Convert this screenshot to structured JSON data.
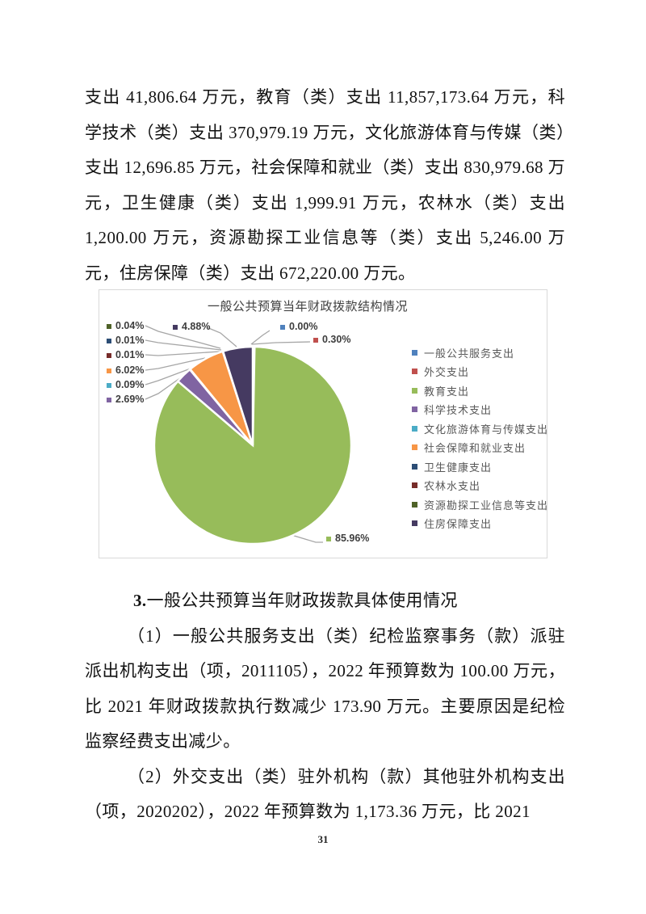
{
  "document": {
    "paragraph_continuation": "支出 41,806.64 万元，教育（类）支出 11,857,173.64 万元，科学技术（类）支出 370,979.19 万元，文化旅游体育与传媒（类）支出 12,696.85 万元，社会保障和就业（类）支出 830,979.68 万元，卫生健康（类）支出 1,999.91 万元，农林水（类）支出 1,200.00 万元，资源勘探工业信息等（类）支出 5,246.00 万元，住房保障（类）支出 672,220.00 万元。",
    "section_heading_number": "3.",
    "section_heading_text": "一般公共预算当年财政拨款具体使用情况",
    "paragraph_item1": "（1）一般公共服务支出（类）纪检监察事务（款）派驻派出机构支出（项，2011105），2022 年预算数为 100.00 万元，比 2021 年财政拨款执行数减少 173.90 万元。主要原因是纪检监察经费支出减少。",
    "paragraph_item2": "（2）外交支出（类）驻外机构（款）其他驻外机构支出（项，2020202），2022 年预算数为 1,173.36 万元，比 2021",
    "page_number": "31"
  },
  "chart_data": {
    "type": "pie",
    "title": "一般公共预算当年财政拨款结构情况",
    "legend_position": "right",
    "categories": [
      "一般公共服务支出",
      "外交支出",
      "教育支出",
      "科学技术支出",
      "文化旅游体育与传媒支出",
      "社会保障和就业支出",
      "卫生健康支出",
      "农林水支出",
      "资源勘探工业信息等支出",
      "住房保障支出"
    ],
    "values_percent": [
      0.0,
      0.3,
      85.96,
      2.69,
      0.09,
      6.02,
      0.01,
      0.01,
      0.04,
      4.88
    ],
    "labels": [
      "0.00%",
      "0.30%",
      "85.96%",
      "2.69%",
      "0.09%",
      "6.02%",
      "0.01%",
      "0.01%",
      "0.04%",
      "4.88%"
    ],
    "colors": [
      "#4F81BD",
      "#C0504D",
      "#97BC5A",
      "#8064A2",
      "#4BACC6",
      "#F79646",
      "#2C4D75",
      "#772C2A",
      "#4F6228",
      "#453A61"
    ]
  }
}
